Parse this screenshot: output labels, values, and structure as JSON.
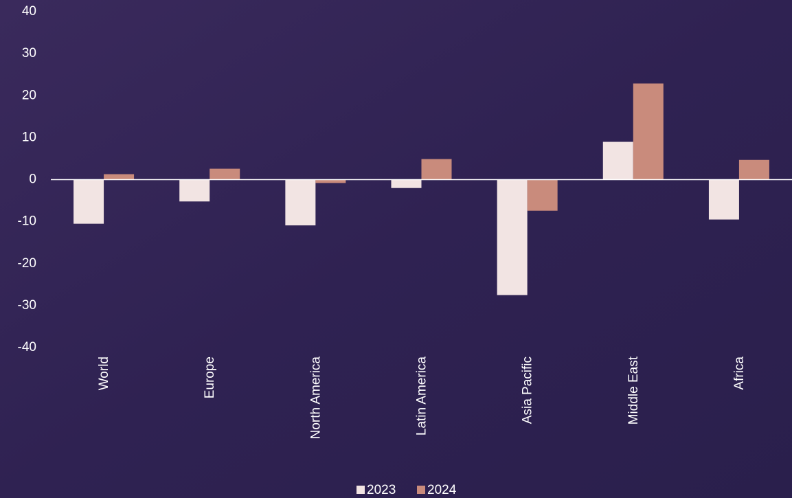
{
  "chart_data": {
    "type": "bar",
    "categories": [
      "World",
      "Europe",
      "North America",
      "Latin America",
      "Asia Pacific",
      "Middle East",
      "Africa"
    ],
    "series": [
      {
        "name": "2023",
        "color": "#f2e4e3",
        "values": [
          -10.5,
          -5.2,
          -10.9,
          -2.0,
          -27.5,
          9.0,
          -9.5
        ]
      },
      {
        "name": "2024",
        "color": "#c98b7c",
        "values": [
          1.3,
          2.6,
          -0.8,
          4.9,
          -7.4,
          22.9,
          4.7
        ]
      }
    ],
    "ylim": [
      -40,
      40
    ],
    "yticks": [
      -40,
      -30,
      -20,
      -10,
      0,
      10,
      20,
      30,
      40
    ],
    "grid": false,
    "legend": "bottom"
  }
}
